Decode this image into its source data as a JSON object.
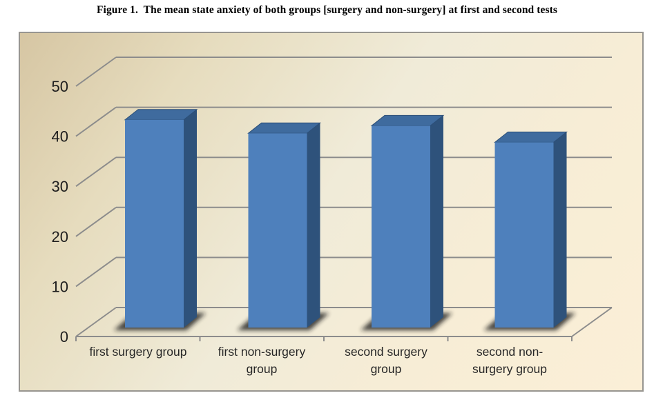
{
  "title": "Figure 1.  The mean state anxiety of both groups [surgery and non-surgery] at first and second tests",
  "chart_data": {
    "type": "bar",
    "subtype": "3d-column",
    "title": "Figure 1.  The mean state anxiety of both groups [surgery and non-surgery] at first and second tests",
    "categories": [
      "first surgery group",
      "first non-surgery group",
      "second surgery group",
      "second non-surgery group"
    ],
    "values": [
      41.5,
      38.8,
      40.3,
      37.0
    ],
    "xlabel": "",
    "ylabel": "",
    "ylim": [
      0,
      50
    ],
    "yticks": [
      0,
      10,
      20,
      30,
      40,
      50
    ],
    "grid": true,
    "legend": false,
    "bar_color": "#4e80bc"
  },
  "yaxis": {
    "tick_labels": [
      "0",
      "10",
      "20",
      "30",
      "40",
      "50"
    ]
  },
  "xaxis": {
    "labels": [
      "first surgery group",
      "first non-surgery\ngroup",
      "second surgery\ngroup",
      "second non-\nsurgery group"
    ]
  },
  "colors": {
    "bar_front": "#4e80bc",
    "bar_side": "#2e527b",
    "bar_top": "#3f6b9e",
    "bar_top_edge": "#2c4f78",
    "shadow": "#1c1c1c",
    "gridline": "#8c8c8c",
    "tick_text": "#1d1d1d",
    "category_text": "#262626",
    "plot_border": "#979590",
    "bg_gradient_from": "#d6c6a3",
    "bg_gradient_to": "#fbefd7"
  }
}
